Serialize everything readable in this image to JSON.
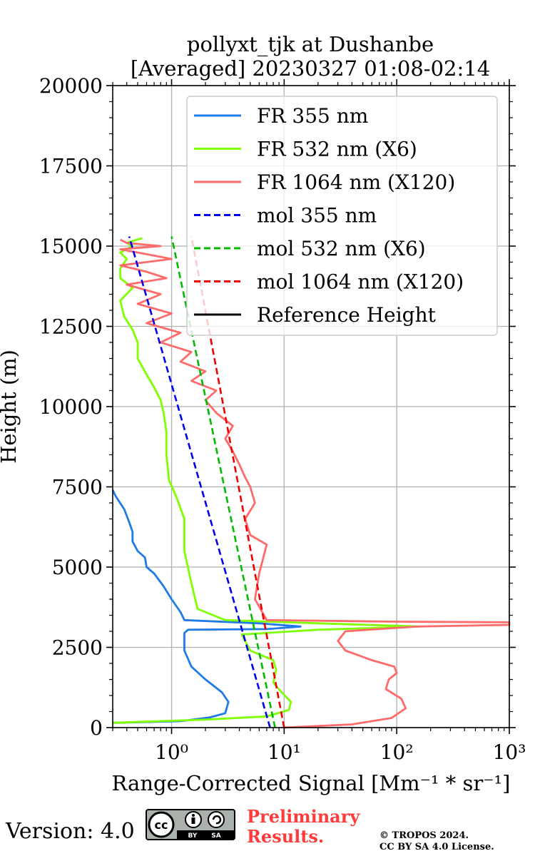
{
  "chart_data": {
    "type": "line",
    "title": "pollyxt_tjk at Dushanbe",
    "subtitle": "[Averaged] 20230327 01:08-02:14",
    "xlabel": "Range-Corrected Signal [Mm⁻¹ * sr⁻¹]",
    "ylabel": "Height (m)",
    "xscale": "log",
    "xlim": [
      0.3,
      1000
    ],
    "ylim": [
      0,
      20000
    ],
    "x_ticks": [
      1,
      10,
      100,
      1000
    ],
    "x_tick_labels": [
      "10⁰",
      "10¹",
      "10²",
      "10³"
    ],
    "y_ticks": [
      0,
      2500,
      5000,
      7500,
      10000,
      12500,
      15000,
      17500,
      20000
    ],
    "y_tick_labels": [
      "0",
      "2500",
      "5000",
      "7500",
      "10000",
      "12500",
      "15000",
      "17500",
      "20000"
    ],
    "grid": true,
    "legend_position": "top-right",
    "series": [
      {
        "name": "FR 355 nm",
        "color": "#1f7be6",
        "style": "solid",
        "x": [
          0.3,
          1.2,
          2.2,
          3.0,
          3.2,
          2.8,
          2.0,
          1.5,
          1.3,
          1.3,
          1.4,
          7.0,
          14.0,
          6.0,
          1.3,
          1.2,
          1.0,
          0.85,
          0.7,
          0.6,
          0.58,
          0.5,
          0.45,
          0.45,
          0.42,
          0.38,
          0.32,
          0.3
        ],
        "y": [
          150,
          200,
          320,
          450,
          800,
          1100,
          1500,
          1900,
          2400,
          2950,
          3050,
          3070,
          3150,
          3250,
          3350,
          3600,
          4000,
          4400,
          4800,
          5000,
          5300,
          5500,
          5800,
          6100,
          6400,
          6800,
          7200,
          7400
        ]
      },
      {
        "name": "FR 532 nm (X6)",
        "color": "#7fff00",
        "style": "solid",
        "x": [
          0.3,
          2.0,
          7.0,
          11.0,
          11.5,
          9.5,
          8.0,
          8.5,
          8.0,
          5.0,
          4.2,
          20.0,
          160.0,
          20.0,
          3.0,
          1.7,
          1.5,
          1.3,
          1.3,
          1.1,
          0.95,
          0.9,
          0.9,
          0.85,
          0.8,
          0.7,
          0.6,
          0.5,
          0.5,
          0.45,
          0.38,
          0.35,
          0.45,
          0.35,
          0.35,
          0.4,
          0.35,
          0.45,
          0.4,
          0.55
        ],
        "y": [
          150,
          250,
          350,
          550,
          800,
          1100,
          1400,
          1800,
          2100,
          2400,
          2900,
          3050,
          3150,
          3250,
          3350,
          3700,
          4500,
          5500,
          6500,
          7200,
          7700,
          8500,
          9200,
          9800,
          10200,
          10600,
          11000,
          11500,
          12000,
          12400,
          12800,
          13300,
          13700,
          14000,
          14300,
          14600,
          14800,
          15000,
          15100,
          15250
        ]
      },
      {
        "name": "FR 1064 nm (X120)",
        "color": "#ff6b6b",
        "style": "solid",
        "x": [
          10.0,
          40.0,
          90.0,
          120.0,
          110.0,
          80.0,
          85.0,
          100.0,
          95.0,
          60.0,
          35.0,
          30.0,
          35.0,
          150.0,
          1000.0,
          1000.0,
          100.0,
          7.0,
          5.5,
          6.0,
          7.0,
          5.0,
          4.5,
          5.5,
          5.0,
          4.5,
          4.0,
          3.5,
          3.0,
          3.5,
          2.5,
          2.0,
          2.5,
          1.5,
          2.0,
          1.2,
          1.5,
          0.8,
          1.2,
          0.6,
          1.0,
          0.5,
          0.8,
          0.4,
          0.9,
          0.6,
          0.35,
          1.0,
          0.5,
          0.35,
          0.8,
          0.4,
          0.35
        ],
        "y": [
          0,
          100,
          300,
          600,
          900,
          1200,
          1500,
          1700,
          1900,
          2100,
          2400,
          2700,
          3000,
          3150,
          3200,
          3280,
          3300,
          3350,
          4000,
          4800,
          5700,
          6000,
          6500,
          7000,
          7500,
          7800,
          8200,
          8600,
          9000,
          9400,
          9800,
          10200,
          10500,
          10800,
          11100,
          11400,
          11700,
          12000,
          12300,
          12600,
          12900,
          13200,
          13500,
          13800,
          14000,
          14200,
          14400,
          14600,
          14800,
          14900,
          15000,
          15100,
          15200
        ]
      },
      {
        "name": "mol 355 nm",
        "color": "#0000ee",
        "style": "dashed",
        "x": [
          7.5,
          0.42
        ],
        "y": [
          0,
          15300
        ]
      },
      {
        "name": "mol 532 nm (X6)",
        "color": "#00bb00",
        "style": "dashed",
        "x": [
          8.3,
          1.0
        ],
        "y": [
          0,
          15300
        ]
      },
      {
        "name": "mol 1064 nm (X120)",
        "color": "#ee0000",
        "style": "dashed",
        "x": [
          10.0,
          1.5
        ],
        "y": [
          0,
          15300
        ]
      },
      {
        "name": "Reference Height",
        "color": "#000000",
        "style": "solid",
        "x": [],
        "y": []
      }
    ]
  },
  "footer": {
    "version": "Version: 4.0",
    "cc_by": "BY",
    "cc_sa": "SA",
    "cc_mark": "cc",
    "preliminary_line1": "Preliminary",
    "preliminary_line2": "Results.",
    "copyright_line1": "© TROPOS 2024.",
    "copyright_line2": "CC BY SA 4.0 License."
  }
}
